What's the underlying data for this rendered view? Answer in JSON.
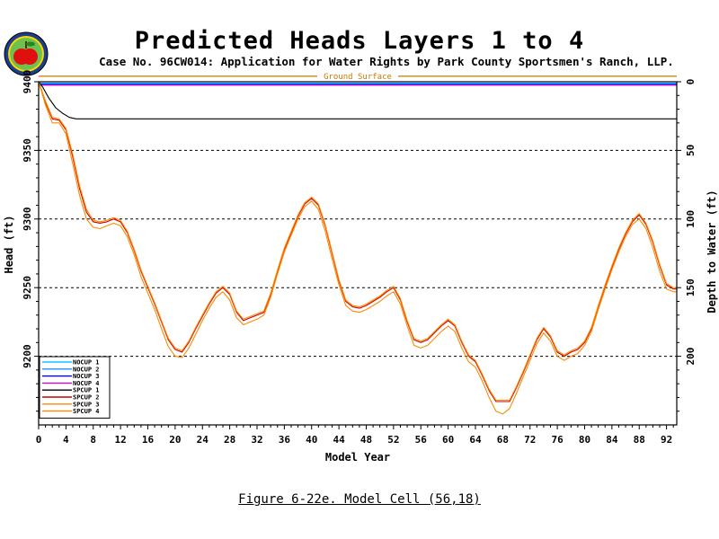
{
  "header": {
    "title": "Predicted Heads Layers 1 to 4",
    "subtitle": "Case No. 96CW014: Application for Water Rights by Park County Sportsmen's Ranch, LLP.",
    "caption": "Figure 6-22e.  Model Cell (56,18)"
  },
  "colors": {
    "nocup1": "#00c8ff",
    "nocup2": "#1e90ff",
    "nocup3": "#0000ff",
    "nocup4": "#dd00dd",
    "spcup1": "#000000",
    "spcup2": "#cc0000",
    "spcup3": "#ff8800",
    "spcup4": "#ff8800",
    "ground": "#cc7700"
  },
  "chart_data": {
    "type": "line",
    "title": "Predicted Heads Layers 1 to 4",
    "xlabel": "Model Year",
    "ylabel": "Head (ft)",
    "y2label": "Depth to Water (ft)",
    "xlim": [
      0,
      93.5
    ],
    "ylim": [
      9150,
      9400
    ],
    "y2lim": [
      0,
      250
    ],
    "x_ticks": [
      0,
      4,
      8,
      12,
      16,
      20,
      24,
      28,
      32,
      36,
      40,
      44,
      48,
      52,
      56,
      60,
      64,
      68,
      72,
      76,
      80,
      84,
      88,
      92
    ],
    "y_ticks": [
      9200,
      9250,
      9300,
      9350,
      9400
    ],
    "y2_ticks": [
      0,
      50,
      100,
      150,
      200
    ],
    "gridlines_y": [
      9200,
      9250,
      9300,
      9350
    ],
    "ground_surface": {
      "label": "Ground Surface",
      "y": 9404
    },
    "legend_placement": "bottom-left",
    "series": [
      {
        "name": "NOCUP 1",
        "color_key": "nocup1",
        "points": [
          [
            0,
            9399
          ],
          [
            93.5,
            9399
          ]
        ]
      },
      {
        "name": "NOCUP 2",
        "color_key": "nocup2",
        "points": [
          [
            0,
            9398.5
          ],
          [
            93.5,
            9398.5
          ]
        ]
      },
      {
        "name": "NOCUP 3",
        "color_key": "nocup3",
        "points": [
          [
            0,
            9398
          ],
          [
            93.5,
            9398
          ]
        ]
      },
      {
        "name": "NOCUP 4",
        "color_key": "nocup4",
        "points": [
          [
            0,
            9397.5
          ],
          [
            93.5,
            9397.5
          ]
        ]
      },
      {
        "name": "SPCUP 1",
        "color_key": "spcup1",
        "points": [
          [
            0,
            9400
          ],
          [
            0.6,
            9396
          ],
          [
            1.5,
            9388
          ],
          [
            2.5,
            9381
          ],
          [
            3.5,
            9377
          ],
          [
            4.5,
            9374
          ],
          [
            5.5,
            9373
          ],
          [
            8,
            9373
          ],
          [
            93.5,
            9373
          ]
        ]
      },
      {
        "name": "SPCUP 2",
        "color_key": "spcup2",
        "points": [
          [
            0,
            9400
          ],
          [
            1,
            9385
          ],
          [
            2,
            9373
          ],
          [
            3,
            9372
          ],
          [
            4,
            9365
          ],
          [
            5,
            9345
          ],
          [
            6,
            9322
          ],
          [
            7,
            9305
          ],
          [
            8,
            9298
          ],
          [
            9,
            9297
          ],
          [
            10,
            9298
          ],
          [
            11,
            9300
          ],
          [
            12,
            9298
          ],
          [
            13,
            9290
          ],
          [
            14,
            9277
          ],
          [
            15,
            9262
          ],
          [
            16,
            9250
          ],
          [
            17,
            9238
          ],
          [
            18,
            9225
          ],
          [
            19,
            9212
          ],
          [
            20,
            9205
          ],
          [
            21,
            9203
          ],
          [
            22,
            9210
          ],
          [
            23,
            9220
          ],
          [
            24,
            9229
          ],
          [
            25,
            9238
          ],
          [
            26,
            9246
          ],
          [
            27,
            9250
          ],
          [
            28,
            9245
          ],
          [
            29,
            9232
          ],
          [
            30,
            9226
          ],
          [
            31,
            9228
          ],
          [
            32,
            9230
          ],
          [
            33,
            9232
          ],
          [
            34,
            9245
          ],
          [
            35,
            9262
          ],
          [
            36,
            9278
          ],
          [
            37,
            9290
          ],
          [
            38,
            9302
          ],
          [
            39,
            9311
          ],
          [
            40,
            9315
          ],
          [
            41,
            9310
          ],
          [
            42,
            9295
          ],
          [
            43,
            9275
          ],
          [
            44,
            9255
          ],
          [
            45,
            9240
          ],
          [
            46,
            9236
          ],
          [
            47,
            9235
          ],
          [
            48,
            9237
          ],
          [
            49,
            9240
          ],
          [
            50,
            9243
          ],
          [
            51,
            9247
          ],
          [
            52,
            9250
          ],
          [
            53,
            9241
          ],
          [
            54,
            9225
          ],
          [
            55,
            9212
          ],
          [
            56,
            9210
          ],
          [
            57,
            9212
          ],
          [
            58,
            9217
          ],
          [
            59,
            9222
          ],
          [
            60,
            9226
          ],
          [
            61,
            9222
          ],
          [
            62,
            9210
          ],
          [
            63,
            9200
          ],
          [
            64,
            9196
          ],
          [
            65,
            9186
          ],
          [
            66,
            9175
          ],
          [
            67,
            9167
          ],
          [
            68,
            9167
          ],
          [
            69,
            9167
          ],
          [
            70,
            9177
          ],
          [
            71,
            9188
          ],
          [
            72,
            9200
          ],
          [
            73,
            9212
          ],
          [
            74,
            9220
          ],
          [
            75,
            9214
          ],
          [
            76,
            9203
          ],
          [
            77,
            9200
          ],
          [
            78,
            9203
          ],
          [
            79,
            9205
          ],
          [
            80,
            9210
          ],
          [
            81,
            9220
          ],
          [
            82,
            9236
          ],
          [
            83,
            9251
          ],
          [
            84,
            9265
          ],
          [
            85,
            9278
          ],
          [
            86,
            9289
          ],
          [
            87,
            9298
          ],
          [
            88,
            9303
          ],
          [
            89,
            9296
          ],
          [
            90,
            9283
          ],
          [
            91,
            9266
          ],
          [
            92,
            9252
          ],
          [
            93,
            9249
          ],
          [
            93.5,
            9249
          ]
        ]
      },
      {
        "name": "SPCUP 3",
        "color_key": "spcup3",
        "points": [
          [
            0,
            9400
          ],
          [
            1,
            9386
          ],
          [
            2,
            9374
          ],
          [
            3,
            9373
          ],
          [
            4,
            9366
          ],
          [
            5,
            9347
          ],
          [
            6,
            9324
          ],
          [
            7,
            9307
          ],
          [
            8,
            9299
          ],
          [
            9,
            9298
          ],
          [
            10,
            9299
          ],
          [
            11,
            9301
          ],
          [
            12,
            9299
          ],
          [
            13,
            9291
          ],
          [
            14,
            9278
          ],
          [
            15,
            9263
          ],
          [
            16,
            9251
          ],
          [
            17,
            9239
          ],
          [
            18,
            9226
          ],
          [
            19,
            9213
          ],
          [
            20,
            9206
          ],
          [
            21,
            9204
          ],
          [
            22,
            9211
          ],
          [
            23,
            9221
          ],
          [
            24,
            9230
          ],
          [
            25,
            9239
          ],
          [
            26,
            9247
          ],
          [
            27,
            9251
          ],
          [
            28,
            9246
          ],
          [
            29,
            9233
          ],
          [
            30,
            9227
          ],
          [
            31,
            9229
          ],
          [
            32,
            9231
          ],
          [
            33,
            9233
          ],
          [
            34,
            9246
          ],
          [
            35,
            9263
          ],
          [
            36,
            9279
          ],
          [
            37,
            9291
          ],
          [
            38,
            9303
          ],
          [
            39,
            9312
          ],
          [
            40,
            9316
          ],
          [
            41,
            9311
          ],
          [
            42,
            9296
          ],
          [
            43,
            9276
          ],
          [
            44,
            9256
          ],
          [
            45,
            9241
          ],
          [
            46,
            9237
          ],
          [
            47,
            9236
          ],
          [
            48,
            9238
          ],
          [
            49,
            9241
          ],
          [
            50,
            9244
          ],
          [
            51,
            9248
          ],
          [
            52,
            9251
          ],
          [
            53,
            9242
          ],
          [
            54,
            9226
          ],
          [
            55,
            9213
          ],
          [
            56,
            9211
          ],
          [
            57,
            9213
          ],
          [
            58,
            9218
          ],
          [
            59,
            9223
          ],
          [
            60,
            9227
          ],
          [
            61,
            9223
          ],
          [
            62,
            9211
          ],
          [
            63,
            9201
          ],
          [
            64,
            9197
          ],
          [
            65,
            9187
          ],
          [
            66,
            9176
          ],
          [
            67,
            9168
          ],
          [
            68,
            9168
          ],
          [
            69,
            9168
          ],
          [
            70,
            9178
          ],
          [
            71,
            9189
          ],
          [
            72,
            9201
          ],
          [
            73,
            9213
          ],
          [
            74,
            9221
          ],
          [
            75,
            9215
          ],
          [
            76,
            9204
          ],
          [
            77,
            9201
          ],
          [
            78,
            9204
          ],
          [
            79,
            9206
          ],
          [
            80,
            9211
          ],
          [
            81,
            9221
          ],
          [
            82,
            9237
          ],
          [
            83,
            9252
          ],
          [
            84,
            9266
          ],
          [
            85,
            9279
          ],
          [
            86,
            9290
          ],
          [
            87,
            9299
          ],
          [
            88,
            9304
          ],
          [
            89,
            9297
          ],
          [
            90,
            9284
          ],
          [
            91,
            9267
          ],
          [
            92,
            9253
          ],
          [
            93,
            9250
          ],
          [
            93.5,
            9250
          ]
        ]
      },
      {
        "name": "SPCUP 4",
        "color_key": "spcup4",
        "points": [
          [
            0,
            9400
          ],
          [
            1,
            9383
          ],
          [
            2,
            9370
          ],
          [
            3,
            9370
          ],
          [
            4,
            9362
          ],
          [
            5,
            9340
          ],
          [
            6,
            9317
          ],
          [
            7,
            9300
          ],
          [
            8,
            9294
          ],
          [
            9,
            9293
          ],
          [
            10,
            9295
          ],
          [
            11,
            9297
          ],
          [
            12,
            9295
          ],
          [
            13,
            9287
          ],
          [
            14,
            9274
          ],
          [
            15,
            9258
          ],
          [
            16,
            9246
          ],
          [
            17,
            9234
          ],
          [
            18,
            9220
          ],
          [
            19,
            9207
          ],
          [
            20,
            9200
          ],
          [
            21,
            9199
          ],
          [
            22,
            9206
          ],
          [
            23,
            9216
          ],
          [
            24,
            9226
          ],
          [
            25,
            9235
          ],
          [
            26,
            9243
          ],
          [
            27,
            9247
          ],
          [
            28,
            9241
          ],
          [
            29,
            9228
          ],
          [
            30,
            9223
          ],
          [
            31,
            9225
          ],
          [
            32,
            9227
          ],
          [
            33,
            9230
          ],
          [
            34,
            9243
          ],
          [
            35,
            9260
          ],
          [
            36,
            9276
          ],
          [
            37,
            9288
          ],
          [
            38,
            9300
          ],
          [
            39,
            9309
          ],
          [
            40,
            9313
          ],
          [
            41,
            9307
          ],
          [
            42,
            9291
          ],
          [
            43,
            9271
          ],
          [
            44,
            9252
          ],
          [
            45,
            9237
          ],
          [
            46,
            9233
          ],
          [
            47,
            9232
          ],
          [
            48,
            9234
          ],
          [
            49,
            9237
          ],
          [
            50,
            9240
          ],
          [
            51,
            9244
          ],
          [
            52,
            9247
          ],
          [
            53,
            9238
          ],
          [
            54,
            9222
          ],
          [
            55,
            9208
          ],
          [
            56,
            9206
          ],
          [
            57,
            9208
          ],
          [
            58,
            9213
          ],
          [
            59,
            9218
          ],
          [
            60,
            9222
          ],
          [
            61,
            9218
          ],
          [
            62,
            9206
          ],
          [
            63,
            9196
          ],
          [
            64,
            9192
          ],
          [
            65,
            9182
          ],
          [
            66,
            9170
          ],
          [
            67,
            9160
          ],
          [
            68,
            9158
          ],
          [
            69,
            9162
          ],
          [
            70,
            9173
          ],
          [
            71,
            9185
          ],
          [
            72,
            9197
          ],
          [
            73,
            9209
          ],
          [
            74,
            9217
          ],
          [
            75,
            9211
          ],
          [
            76,
            9200
          ],
          [
            77,
            9197
          ],
          [
            78,
            9200
          ],
          [
            79,
            9202
          ],
          [
            80,
            9208
          ],
          [
            81,
            9218
          ],
          [
            82,
            9234
          ],
          [
            83,
            9249
          ],
          [
            84,
            9263
          ],
          [
            85,
            9276
          ],
          [
            86,
            9287
          ],
          [
            87,
            9296
          ],
          [
            88,
            9300
          ],
          [
            89,
            9293
          ],
          [
            90,
            9279
          ],
          [
            91,
            9262
          ],
          [
            92,
            9249
          ],
          [
            93,
            9247
          ],
          [
            93.5,
            9247
          ]
        ]
      }
    ]
  }
}
